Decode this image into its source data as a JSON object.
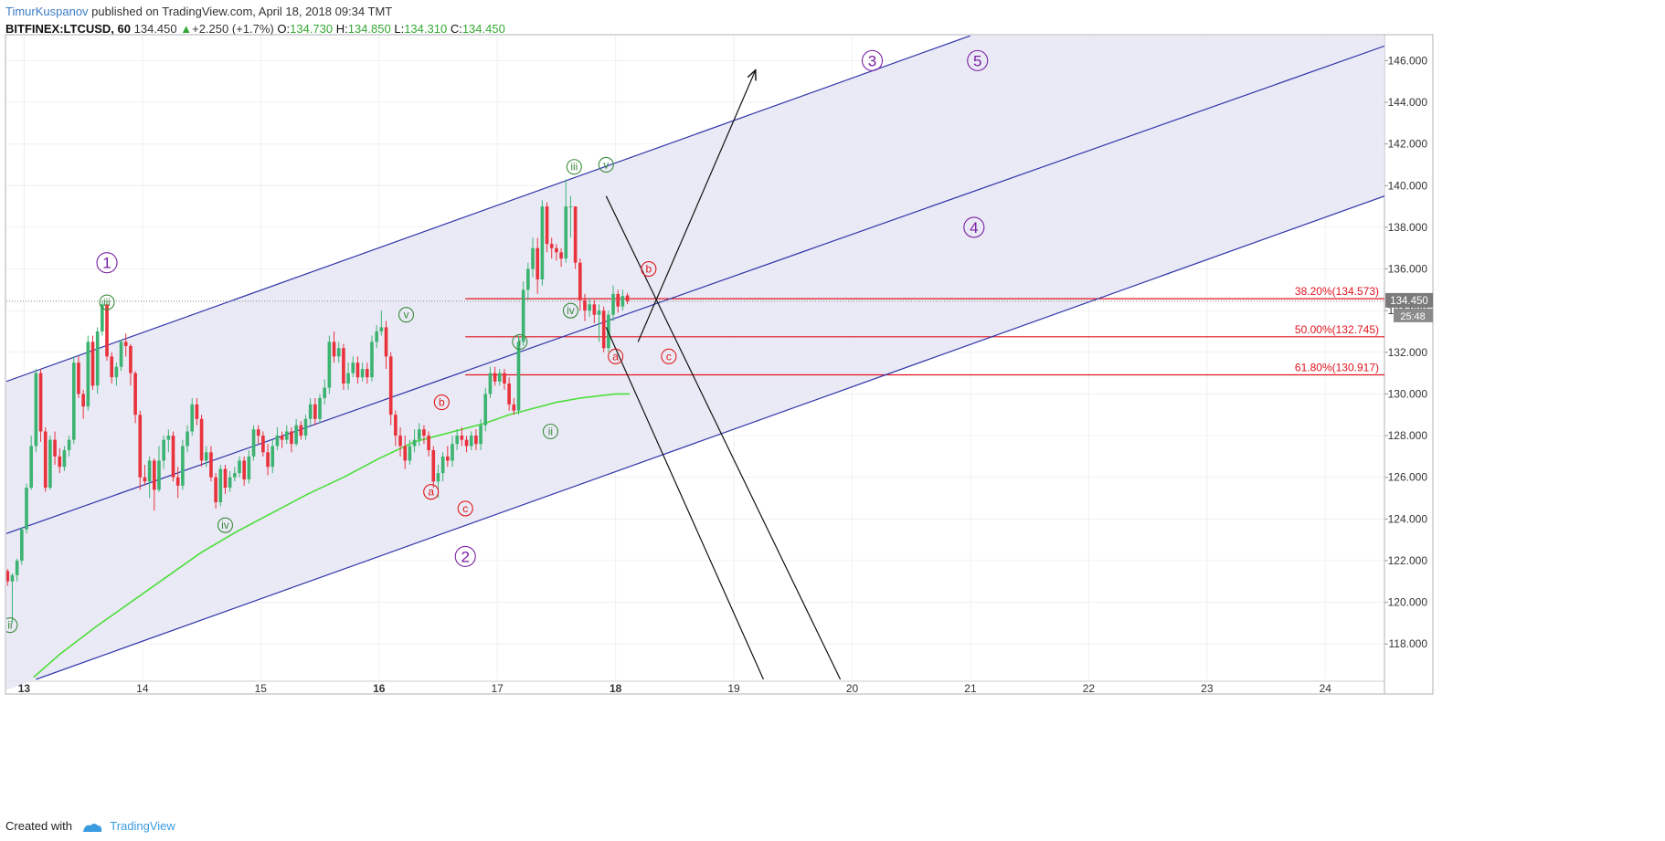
{
  "header": {
    "author": "TimurKuspanov",
    "published_text": " published on TradingView.com, April 18, 2018 09:34 TMT",
    "symbol": "BITFINEX:LTCUSD, 60",
    "last": "134.450",
    "change": "+2.250 (+1.7%)",
    "o_label": "O:",
    "o_value": "134.730",
    "h_label": "H:",
    "h_value": "134.850",
    "l_label": "L:",
    "l_value": "134.310",
    "c_label": "C:",
    "c_value": "134.450"
  },
  "footer": {
    "created_with": "Created with",
    "brand": "TradingView"
  },
  "chart_data": {
    "type": "candlestick",
    "x_axis": {
      "ticks": [
        13,
        14,
        15,
        16,
        17,
        18,
        19,
        20,
        21,
        22,
        23,
        24
      ],
      "bold_ticks": [
        13,
        16,
        18
      ],
      "range": [
        12.85,
        24.5
      ]
    },
    "y_axis": {
      "ticks": [
        "118.000",
        "120.000",
        "122.000",
        "124.000",
        "126.000",
        "128.000",
        "130.000",
        "132.000",
        "134.000",
        "136.000",
        "138.000",
        "140.000",
        "142.000",
        "144.000",
        "146.000"
      ],
      "range": [
        116.3,
        147.2
      ]
    },
    "last_price_label": "134.450",
    "countdown_label": "25:48",
    "candles": [
      [
        12.86,
        121.5,
        121.0,
        121.6,
        120.8
      ],
      [
        12.9,
        121.0,
        121.3,
        121.4,
        119.0
      ],
      [
        12.94,
        121.3,
        122.0,
        122.1,
        121.0
      ],
      [
        12.98,
        122.0,
        123.5,
        123.6,
        121.8
      ],
      [
        13.02,
        123.5,
        125.5,
        125.7,
        123.3
      ],
      [
        13.06,
        125.5,
        127.5,
        128.0,
        125.4
      ],
      [
        13.1,
        127.5,
        131.0,
        131.2,
        127.2
      ],
      [
        13.14,
        131.0,
        128.2,
        131.2,
        127.7
      ],
      [
        13.18,
        128.2,
        125.5,
        128.4,
        125.3
      ],
      [
        13.22,
        125.5,
        127.8,
        128.0,
        125.4
      ],
      [
        13.26,
        127.8,
        127.0,
        128.2,
        126.6
      ],
      [
        13.3,
        127.0,
        126.5,
        127.4,
        126.2
      ],
      [
        13.34,
        126.5,
        127.3,
        127.5,
        126.3
      ],
      [
        13.38,
        127.3,
        127.8,
        128.0,
        127.0
      ],
      [
        13.42,
        127.8,
        131.5,
        131.8,
        127.6
      ],
      [
        13.46,
        131.5,
        130.0,
        131.8,
        129.8
      ],
      [
        13.5,
        130.0,
        129.4,
        130.2,
        128.8
      ],
      [
        13.54,
        129.4,
        132.5,
        132.8,
        129.2
      ],
      [
        13.58,
        132.5,
        130.4,
        132.8,
        130.2
      ],
      [
        13.62,
        130.4,
        133.0,
        133.2,
        130.0
      ],
      [
        13.66,
        133.0,
        134.3,
        134.5,
        132.8
      ],
      [
        13.7,
        134.3,
        131.8,
        134.5,
        131.6
      ],
      [
        13.74,
        131.8,
        130.8,
        132.0,
        130.5
      ],
      [
        13.78,
        130.8,
        131.3,
        131.5,
        130.4
      ],
      [
        13.82,
        131.3,
        132.5,
        132.6,
        131.1
      ],
      [
        13.86,
        132.5,
        132.3,
        132.9,
        131.8
      ],
      [
        13.9,
        132.3,
        131.0,
        132.4,
        130.4
      ],
      [
        13.94,
        131.0,
        129.0,
        131.1,
        128.6
      ],
      [
        13.98,
        129.0,
        126.0,
        129.2,
        125.4
      ],
      [
        14.02,
        126.0,
        125.8,
        126.6,
        125.6
      ],
      [
        14.06,
        125.8,
        126.8,
        127.0,
        125.0
      ],
      [
        14.1,
        126.8,
        125.4,
        126.9,
        124.4
      ],
      [
        14.14,
        125.4,
        126.8,
        127.5,
        125.3
      ],
      [
        14.18,
        126.8,
        127.8,
        128.0,
        126.4
      ],
      [
        14.22,
        127.8,
        128.0,
        128.3,
        127.2
      ],
      [
        14.26,
        128.0,
        126.0,
        128.2,
        125.8
      ],
      [
        14.3,
        126.0,
        125.6,
        126.5,
        125.0
      ],
      [
        14.34,
        125.6,
        127.5,
        127.8,
        125.4
      ],
      [
        14.38,
        127.5,
        128.2,
        128.5,
        127.2
      ],
      [
        14.42,
        128.2,
        129.5,
        129.8,
        128.0
      ],
      [
        14.46,
        129.5,
        128.8,
        129.8,
        128.5
      ],
      [
        14.5,
        128.8,
        126.8,
        129.0,
        126.5
      ],
      [
        14.54,
        126.8,
        127.2,
        127.5,
        126.5
      ],
      [
        14.58,
        127.2,
        126.0,
        127.5,
        125.8
      ],
      [
        14.62,
        126.0,
        124.8,
        126.2,
        124.5
      ],
      [
        14.66,
        124.8,
        126.4,
        126.6,
        124.6
      ],
      [
        14.7,
        126.4,
        125.5,
        126.6,
        125.2
      ],
      [
        14.74,
        125.5,
        126.0,
        126.3,
        125.3
      ],
      [
        14.78,
        126.0,
        126.2,
        126.5,
        125.8
      ],
      [
        14.82,
        126.2,
        126.8,
        127.0,
        126.0
      ],
      [
        14.86,
        126.8,
        125.9,
        127.0,
        125.6
      ],
      [
        14.9,
        125.9,
        127.0,
        127.3,
        125.7
      ],
      [
        14.94,
        127.0,
        128.3,
        128.5,
        126.8
      ],
      [
        14.98,
        128.3,
        128.0,
        128.5,
        127.6
      ],
      [
        15.02,
        128.0,
        127.2,
        128.2,
        127.0
      ],
      [
        15.06,
        127.2,
        126.5,
        127.6,
        126.1
      ],
      [
        15.1,
        126.5,
        127.5,
        127.8,
        126.2
      ],
      [
        15.14,
        127.5,
        128.0,
        128.4,
        127.3
      ],
      [
        15.18,
        128.0,
        127.8,
        128.2,
        127.4
      ],
      [
        15.22,
        127.8,
        128.2,
        128.5,
        127.6
      ],
      [
        15.26,
        128.2,
        127.6,
        128.4,
        127.2
      ],
      [
        15.3,
        127.6,
        128.5,
        128.8,
        127.5
      ],
      [
        15.34,
        128.5,
        128.0,
        128.7,
        127.8
      ],
      [
        15.38,
        128.0,
        128.8,
        129.0,
        127.8
      ],
      [
        15.42,
        128.8,
        129.5,
        129.8,
        128.5
      ],
      [
        15.46,
        129.5,
        128.8,
        129.8,
        128.5
      ],
      [
        15.5,
        128.8,
        129.8,
        130.0,
        128.6
      ],
      [
        15.54,
        129.8,
        130.3,
        130.7,
        129.5
      ],
      [
        15.58,
        130.3,
        132.5,
        132.8,
        130.0
      ],
      [
        15.62,
        132.5,
        131.8,
        133.0,
        131.5
      ],
      [
        15.66,
        131.8,
        132.2,
        132.5,
        131.5
      ],
      [
        15.7,
        132.2,
        130.5,
        132.4,
        130.2
      ],
      [
        15.74,
        130.5,
        131.0,
        131.5,
        130.2
      ],
      [
        15.78,
        131.0,
        131.5,
        131.8,
        130.8
      ],
      [
        15.82,
        131.5,
        130.8,
        131.8,
        130.5
      ],
      [
        15.86,
        130.8,
        131.2,
        131.5,
        130.6
      ],
      [
        15.9,
        131.2,
        130.8,
        131.5,
        130.5
      ],
      [
        15.94,
        130.8,
        132.5,
        132.8,
        130.6
      ],
      [
        15.98,
        132.5,
        133.0,
        133.3,
        132.2
      ],
      [
        16.02,
        133.0,
        133.2,
        134.0,
        132.8
      ],
      [
        16.06,
        133.2,
        131.8,
        133.5,
        131.2
      ],
      [
        16.1,
        131.8,
        129.0,
        132.0,
        128.5
      ],
      [
        16.14,
        129.0,
        128.0,
        129.2,
        127.5
      ],
      [
        16.18,
        128.0,
        127.5,
        128.4,
        127.0
      ],
      [
        16.22,
        127.5,
        126.8,
        128.0,
        126.4
      ],
      [
        16.26,
        126.8,
        127.5,
        127.8,
        126.6
      ],
      [
        16.3,
        127.5,
        127.8,
        128.3,
        127.2
      ],
      [
        16.34,
        127.8,
        128.3,
        128.6,
        127.5
      ],
      [
        16.38,
        128.3,
        128.0,
        128.5,
        127.6
      ],
      [
        16.42,
        128.0,
        127.3,
        128.2,
        127.0
      ],
      [
        16.46,
        127.3,
        125.8,
        127.5,
        125.5
      ],
      [
        16.5,
        125.8,
        126.2,
        126.6,
        125.0
      ],
      [
        16.54,
        126.2,
        127.0,
        127.2,
        125.8
      ],
      [
        16.58,
        127.0,
        126.8,
        127.5,
        126.5
      ],
      [
        16.62,
        126.8,
        127.6,
        128.0,
        126.5
      ],
      [
        16.66,
        127.6,
        128.0,
        128.3,
        127.3
      ],
      [
        16.7,
        128.0,
        127.8,
        128.4,
        127.5
      ],
      [
        16.74,
        127.8,
        127.5,
        128.0,
        127.2
      ],
      [
        16.78,
        127.5,
        128.0,
        128.2,
        127.3
      ],
      [
        16.82,
        128.0,
        127.6,
        128.3,
        127.3
      ],
      [
        16.86,
        127.6,
        128.5,
        128.8,
        127.3
      ],
      [
        16.9,
        128.5,
        130.0,
        130.3,
        128.2
      ],
      [
        16.94,
        130.0,
        131.0,
        131.3,
        129.8
      ],
      [
        16.98,
        131.0,
        130.6,
        131.3,
        130.4
      ],
      [
        17.02,
        130.6,
        131.0,
        131.2,
        130.4
      ],
      [
        17.06,
        131.0,
        130.5,
        131.2,
        130.2
      ],
      [
        17.1,
        130.5,
        129.5,
        130.8,
        129.2
      ],
      [
        17.14,
        129.5,
        129.2,
        129.8,
        129.0
      ],
      [
        17.18,
        129.2,
        132.5,
        132.8,
        129.0
      ],
      [
        17.22,
        132.5,
        135.0,
        135.4,
        132.3
      ],
      [
        17.26,
        135.0,
        136.0,
        136.3,
        134.5
      ],
      [
        17.3,
        136.0,
        137.0,
        137.5,
        135.6
      ],
      [
        17.34,
        137.0,
        135.5,
        137.5,
        134.8
      ],
      [
        17.38,
        135.5,
        139.0,
        139.3,
        135.2
      ],
      [
        17.42,
        139.0,
        137.2,
        139.2,
        136.8
      ],
      [
        17.46,
        137.2,
        137.0,
        137.5,
        136.5
      ],
      [
        17.5,
        137.0,
        136.8,
        137.2,
        136.4
      ],
      [
        17.54,
        136.8,
        136.5,
        137.0,
        136.1
      ],
      [
        17.58,
        136.5,
        139.0,
        140.3,
        136.3
      ],
      [
        17.62,
        139.0,
        139.0,
        139.5,
        137.5
      ],
      [
        17.66,
        139.0,
        136.3,
        139.0,
        136.0
      ],
      [
        17.7,
        136.3,
        134.5,
        136.5,
        134.0
      ],
      [
        17.74,
        134.5,
        134.0,
        134.8,
        133.5
      ],
      [
        17.78,
        134.0,
        134.3,
        134.6,
        133.7
      ],
      [
        17.82,
        134.3,
        133.8,
        134.5,
        133.4
      ],
      [
        17.86,
        133.8,
        134.0,
        134.3,
        132.5
      ],
      [
        17.9,
        134.0,
        132.2,
        134.2,
        132.0
      ],
      [
        17.94,
        132.2,
        133.8,
        134.0,
        132.0
      ],
      [
        17.98,
        133.8,
        134.8,
        135.2,
        133.5
      ],
      [
        18.02,
        134.8,
        134.2,
        135.0,
        133.9
      ],
      [
        18.06,
        134.2,
        134.7,
        135.0,
        134.0
      ],
      [
        18.1,
        134.73,
        134.45,
        134.85,
        134.31
      ]
    ],
    "ma_line": [
      [
        13.08,
        116.4
      ],
      [
        13.3,
        117.5
      ],
      [
        13.6,
        118.8
      ],
      [
        13.9,
        120.0
      ],
      [
        14.2,
        121.2
      ],
      [
        14.5,
        122.4
      ],
      [
        14.8,
        123.4
      ],
      [
        15.1,
        124.3
      ],
      [
        15.4,
        125.2
      ],
      [
        15.7,
        126.0
      ],
      [
        16.0,
        126.9
      ],
      [
        16.15,
        127.3
      ],
      [
        16.3,
        127.7
      ],
      [
        16.5,
        128.0
      ],
      [
        16.7,
        128.3
      ],
      [
        16.9,
        128.6
      ],
      [
        17.1,
        129.0
      ],
      [
        17.3,
        129.3
      ],
      [
        17.5,
        129.6
      ],
      [
        17.7,
        129.8
      ],
      [
        17.85,
        129.9
      ],
      [
        18.0,
        130.0
      ],
      [
        18.12,
        130.0
      ]
    ],
    "channel": {
      "upper": [
        [
          12.85,
          130.6
        ],
        [
          21.0,
          147.2
        ]
      ],
      "middle": [
        [
          12.85,
          123.3
        ],
        [
          24.5,
          146.7
        ]
      ],
      "lower": [
        [
          13.1,
          116.3
        ],
        [
          24.5,
          139.5
        ]
      ],
      "fill_color": "#e6e6f5",
      "line_color": "#2f35a8"
    },
    "fib_levels": [
      {
        "label": "38.20%(134.573)",
        "price": 134.573
      },
      {
        "label": "50.00%(132.745)",
        "price": 132.745
      },
      {
        "label": "61.80%(130.917)",
        "price": 130.917
      }
    ],
    "fib_start_x": 16.73,
    "arrow_lines": [
      {
        "from": [
          18.19,
          132.5
        ],
        "to": [
          19.18,
          145.5
        ],
        "arrow": true
      },
      {
        "from": [
          17.92,
          139.5
        ],
        "to": [
          19.9,
          116.3
        ],
        "arrow": false
      },
      {
        "from": [
          17.92,
          133.2
        ],
        "to": [
          19.25,
          116.3
        ],
        "arrow": false
      }
    ],
    "wave_labels": [
      {
        "text": "1",
        "x": 13.7,
        "y": 136.3,
        "color": "#7a1fa2",
        "size": "major"
      },
      {
        "text": "2",
        "x": 16.73,
        "y": 122.2,
        "color": "#7a1fa2",
        "size": "major"
      },
      {
        "text": "3",
        "x": 20.17,
        "y": 146.0,
        "color": "#7a1fa2",
        "size": "major"
      },
      {
        "text": "4",
        "x": 21.03,
        "y": 138.0,
        "color": "#7a1fa2",
        "size": "major"
      },
      {
        "text": "5",
        "x": 21.06,
        "y": 146.0,
        "color": "#7a1fa2",
        "size": "major"
      },
      {
        "text": "ii",
        "x": 12.88,
        "y": 118.9,
        "color": "#3a8a3a",
        "size": "minor"
      },
      {
        "text": "iii",
        "x": 13.7,
        "y": 134.4,
        "color": "#3a8a3a",
        "size": "minor"
      },
      {
        "text": "iv",
        "x": 14.7,
        "y": 123.7,
        "color": "#3a8a3a",
        "size": "minor"
      },
      {
        "text": "v",
        "x": 16.23,
        "y": 133.8,
        "color": "#3a8a3a",
        "size": "minor"
      },
      {
        "text": "i",
        "x": 17.19,
        "y": 132.5,
        "color": "#3a8a3a",
        "size": "minor"
      },
      {
        "text": "ii",
        "x": 17.45,
        "y": 128.2,
        "color": "#3a8a3a",
        "size": "minor"
      },
      {
        "text": "iii",
        "x": 17.65,
        "y": 140.9,
        "color": "#3a8a3a",
        "size": "minor"
      },
      {
        "text": "iv",
        "x": 17.62,
        "y": 134.0,
        "color": "#3a8a3a",
        "size": "minor"
      },
      {
        "text": "v",
        "x": 17.92,
        "y": 141.0,
        "color": "#3a8a3a",
        "size": "minor"
      },
      {
        "text": "a",
        "x": 16.44,
        "y": 125.3,
        "color": "#e01818",
        "size": "minor"
      },
      {
        "text": "b",
        "x": 16.53,
        "y": 129.6,
        "color": "#e01818",
        "size": "minor"
      },
      {
        "text": "c",
        "x": 16.73,
        "y": 124.5,
        "color": "#e01818",
        "size": "minor"
      },
      {
        "text": "a",
        "x": 18.0,
        "y": 131.8,
        "color": "#e01818",
        "size": "minor"
      },
      {
        "text": "b",
        "x": 18.28,
        "y": 136.0,
        "color": "#e01818",
        "size": "minor"
      },
      {
        "text": "c",
        "x": 18.45,
        "y": 131.8,
        "color": "#e01818",
        "size": "minor"
      }
    ],
    "colors": {
      "up": "#3cb371",
      "down": "#e8323c",
      "ma": "#4cde3a",
      "fib": "#e0141e",
      "axis_text": "#333333",
      "grid": "#f0f0f4"
    }
  }
}
